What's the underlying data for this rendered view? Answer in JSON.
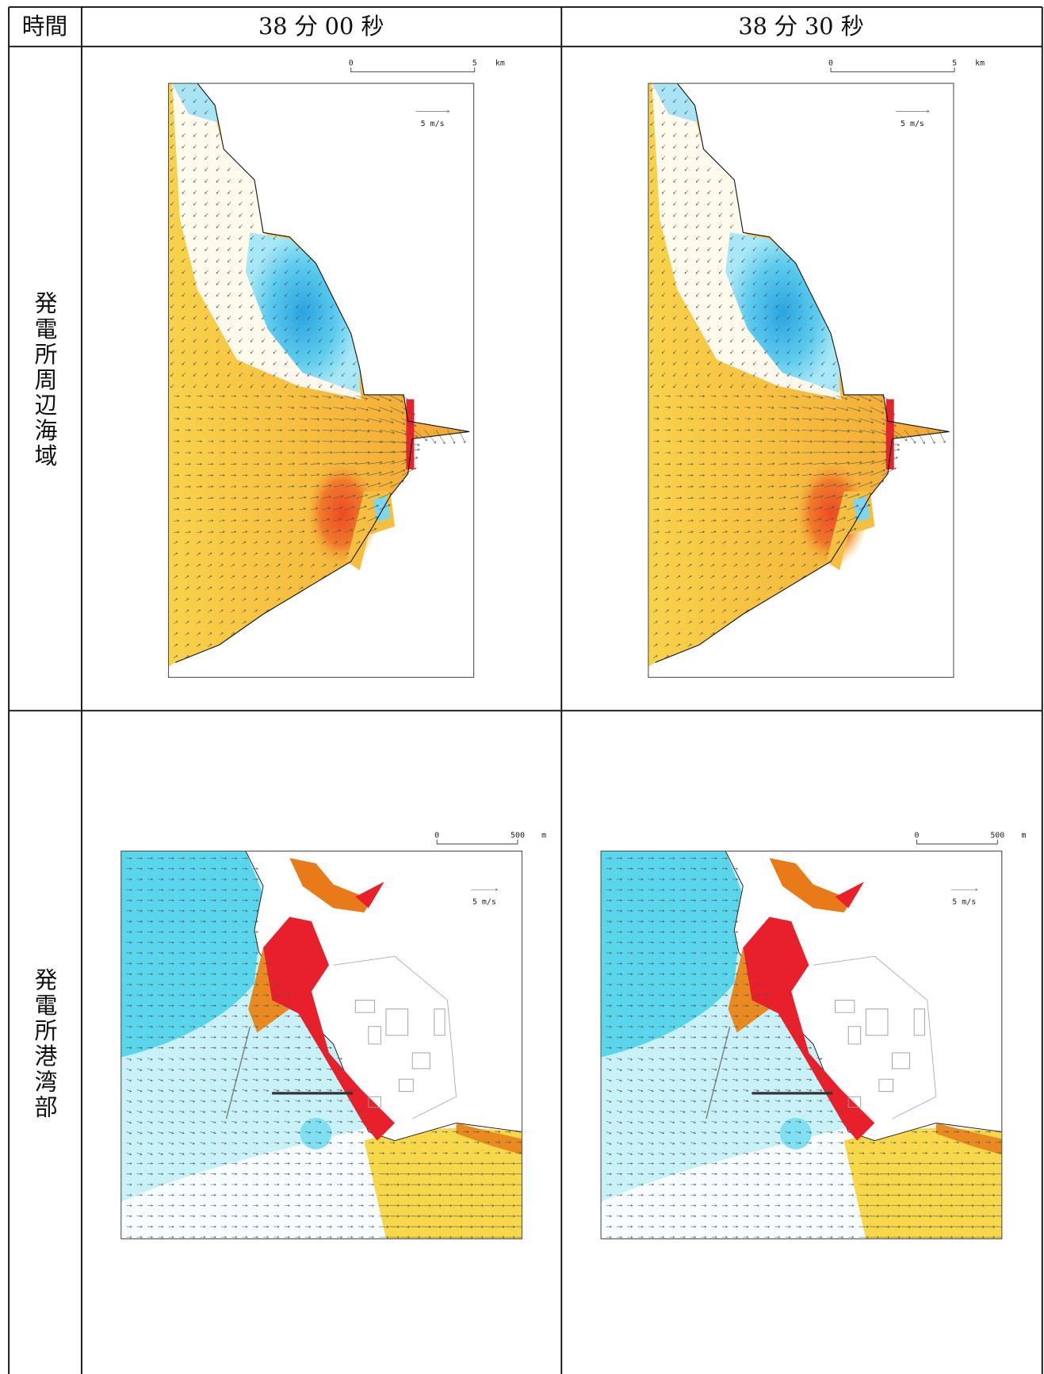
{
  "table": {
    "header": [
      "時間",
      "38 分 00 秒",
      "38 分 30 秒"
    ],
    "rows": [
      {
        "label": "発電所周辺海域",
        "scale": {
          "start": "0",
          "end": "5",
          "unit": "km",
          "vector": "5 m/s"
        }
      },
      {
        "label": "発電所港湾部",
        "scale": {
          "start": "0",
          "end": "500",
          "unit": "m",
          "vector": "5 m/s"
        }
      }
    ]
  }
}
